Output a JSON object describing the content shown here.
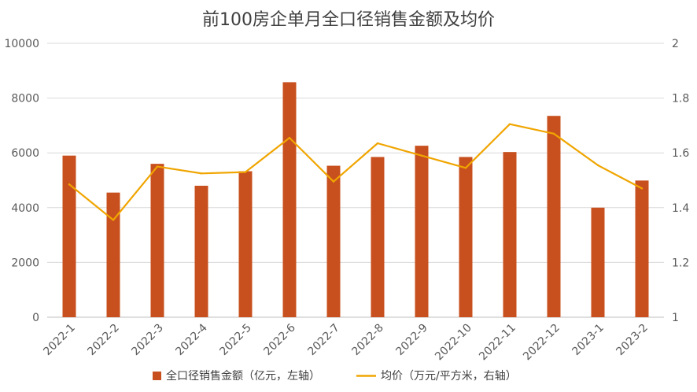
{
  "chart_data": {
    "type": "bar",
    "title": "前100房企单月全口径销售金额及均价",
    "categories": [
      "2022-1",
      "2022-2",
      "2022-3",
      "2022-4",
      "2022-5",
      "2022-6",
      "2022-7",
      "2022-8",
      "2022-9",
      "2022-10",
      "2022-11",
      "2022-12",
      "2023-1",
      "2023-2"
    ],
    "series": [
      {
        "name": "全口径销售金额（亿元，左轴）",
        "type": "bar",
        "axis": "left",
        "color": "#C8501E",
        "values": [
          5900,
          4550,
          5600,
          4800,
          5330,
          8580,
          5530,
          5850,
          6260,
          5850,
          6030,
          7350,
          4000,
          4990
        ]
      },
      {
        "name": "均价（万元/平方米，右轴）",
        "type": "line",
        "axis": "right",
        "color": "#F0A500",
        "values": [
          1.485,
          1.355,
          1.55,
          1.525,
          1.53,
          1.655,
          1.495,
          1.635,
          1.59,
          1.545,
          1.705,
          1.67,
          1.555,
          1.47
        ]
      }
    ],
    "y_left": {
      "min": 0,
      "max": 10000,
      "ticks": [
        0,
        2000,
        4000,
        6000,
        8000,
        10000
      ]
    },
    "y_right": {
      "min": 1,
      "max": 2,
      "ticks": [
        "1",
        "1.2",
        "1.4",
        "1.6",
        "1.8",
        "2"
      ]
    },
    "grid": true,
    "legend_position": "bottom"
  }
}
